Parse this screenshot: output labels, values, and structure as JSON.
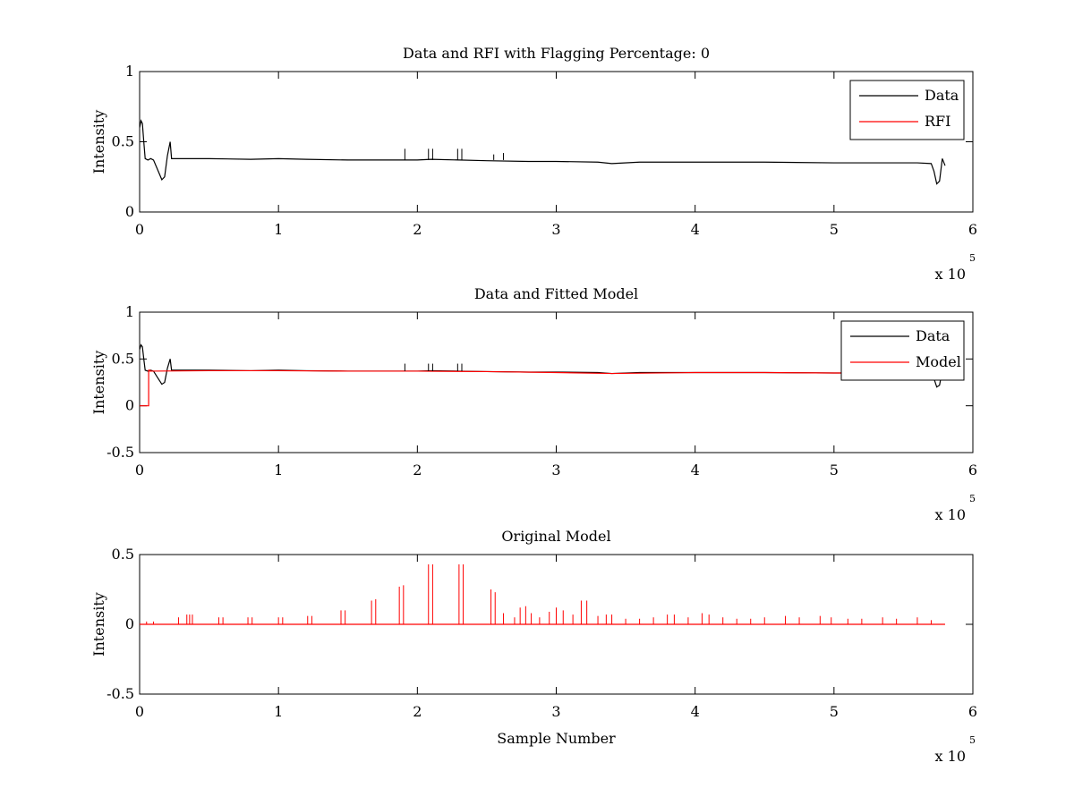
{
  "chart_data": [
    {
      "type": "line",
      "title": "Data and RFI with Flagging Percentage: 0",
      "xlabel": "",
      "ylabel": "Intensity",
      "xlim": [
        0,
        600000
      ],
      "ylim": [
        0,
        1
      ],
      "x_ticks": [
        "0",
        "1",
        "2",
        "3",
        "4",
        "5",
        "6"
      ],
      "y_ticks": [
        "0",
        "0.5",
        "1"
      ],
      "x_multiplier": {
        "base": "x 10",
        "exponent": "5"
      },
      "grid": false,
      "legend": {
        "placement": "top-right",
        "entries": [
          "Data",
          "RFI"
        ]
      },
      "series": [
        {
          "name": "Data",
          "color": "#000000",
          "x": [
            0,
            1000,
            2000,
            3000,
            4000,
            6000,
            8000,
            10000,
            13000,
            16000,
            18000,
            20000,
            22000,
            23000,
            25000,
            50000,
            80000,
            100000,
            120000,
            150000,
            180000,
            200000,
            210000,
            230000,
            250000,
            280000,
            300000,
            330000,
            340000,
            360000,
            400000,
            450000,
            500000,
            530000,
            560000,
            570000,
            572000,
            574000,
            576000,
            578000,
            580000
          ],
          "y": [
            0.6,
            0.65,
            0.63,
            0.5,
            0.38,
            0.37,
            0.38,
            0.37,
            0.3,
            0.23,
            0.25,
            0.4,
            0.5,
            0.38,
            0.38,
            0.38,
            0.375,
            0.38,
            0.375,
            0.37,
            0.37,
            0.37,
            0.375,
            0.37,
            0.365,
            0.36,
            0.36,
            0.355,
            0.345,
            0.355,
            0.355,
            0.355,
            0.35,
            0.35,
            0.35,
            0.345,
            0.29,
            0.2,
            0.22,
            0.38,
            0.33
          ]
        },
        {
          "name": "RFI",
          "color": "#ff0000",
          "x": [],
          "y": []
        }
      ],
      "spikes": [
        {
          "x": 191000,
          "y": 0.45
        },
        {
          "x": 208000,
          "y": 0.45
        },
        {
          "x": 211000,
          "y": 0.45
        },
        {
          "x": 229000,
          "y": 0.45
        },
        {
          "x": 232000,
          "y": 0.45
        },
        {
          "x": 262000,
          "y": 0.42
        },
        {
          "x": 255000,
          "y": 0.41
        }
      ]
    },
    {
      "type": "line",
      "title": "Data and Fitted Model",
      "xlabel": "",
      "ylabel": "Intensity",
      "xlim": [
        0,
        600000
      ],
      "ylim": [
        -0.5,
        1
      ],
      "x_ticks": [
        "0",
        "1",
        "2",
        "3",
        "4",
        "5",
        "6"
      ],
      "y_ticks": [
        "-0.5",
        "0",
        "0.5",
        "1"
      ],
      "x_multiplier": {
        "base": "x 10",
        "exponent": "5"
      },
      "grid": false,
      "legend": {
        "placement": "top-right",
        "entries": [
          "Data",
          "Model"
        ]
      },
      "series": [
        {
          "name": "Data",
          "color": "#000000",
          "x": [
            0,
            1000,
            2000,
            3000,
            4000,
            6000,
            8000,
            10000,
            13000,
            16000,
            18000,
            20000,
            22000,
            23000,
            25000,
            50000,
            80000,
            100000,
            120000,
            150000,
            180000,
            200000,
            210000,
            230000,
            250000,
            280000,
            300000,
            330000,
            340000,
            360000,
            400000,
            450000,
            500000,
            530000,
            560000,
            570000,
            572000,
            574000,
            576000,
            578000,
            580000
          ],
          "y": [
            0.6,
            0.65,
            0.63,
            0.5,
            0.38,
            0.37,
            0.38,
            0.37,
            0.3,
            0.23,
            0.25,
            0.4,
            0.5,
            0.38,
            0.38,
            0.38,
            0.375,
            0.38,
            0.375,
            0.37,
            0.37,
            0.37,
            0.375,
            0.37,
            0.365,
            0.36,
            0.36,
            0.355,
            0.345,
            0.355,
            0.355,
            0.355,
            0.35,
            0.35,
            0.35,
            0.345,
            0.29,
            0.2,
            0.22,
            0.38,
            0.33
          ]
        },
        {
          "name": "Model",
          "color": "#ff0000",
          "x": [
            0,
            6500,
            6500,
            7500,
            7500,
            50000,
            100000,
            150000,
            200000,
            250000,
            300000,
            340000,
            400000,
            450000,
            500000,
            540000
          ],
          "y": [
            0,
            0,
            0.38,
            0.38,
            0.37,
            0.375,
            0.375,
            0.37,
            0.37,
            0.365,
            0.355,
            0.345,
            0.355,
            0.355,
            0.35,
            0.35
          ]
        }
      ],
      "spikes": [
        {
          "x": 191000,
          "y": 0.45
        },
        {
          "x": 208000,
          "y": 0.45
        },
        {
          "x": 211000,
          "y": 0.45
        },
        {
          "x": 229000,
          "y": 0.45
        },
        {
          "x": 232000,
          "y": 0.45
        }
      ]
    },
    {
      "type": "line",
      "title": "Original Model",
      "xlabel": "Sample Number",
      "ylabel": "Intensity",
      "xlim": [
        0,
        600000
      ],
      "ylim": [
        -0.5,
        0.5
      ],
      "x_ticks": [
        "0",
        "1",
        "2",
        "3",
        "4",
        "5",
        "6"
      ],
      "y_ticks": [
        "-0.5",
        "0",
        "0.5"
      ],
      "x_multiplier": {
        "base": "x 10",
        "exponent": "5"
      },
      "grid": false,
      "series": [
        {
          "name": "",
          "color": "#ff0000",
          "x": [
            0,
            580000
          ],
          "y": [
            0,
            0
          ]
        }
      ],
      "spikes": [
        {
          "x": 5000,
          "y": 0.02
        },
        {
          "x": 10000,
          "y": 0.02
        },
        {
          "x": 28000,
          "y": 0.05
        },
        {
          "x": 34000,
          "y": 0.07
        },
        {
          "x": 36000,
          "y": 0.07
        },
        {
          "x": 38000,
          "y": 0.07
        },
        {
          "x": 57000,
          "y": 0.05
        },
        {
          "x": 60000,
          "y": 0.05
        },
        {
          "x": 78000,
          "y": 0.05
        },
        {
          "x": 81000,
          "y": 0.05
        },
        {
          "x": 100000,
          "y": 0.05
        },
        {
          "x": 103000,
          "y": 0.05
        },
        {
          "x": 121000,
          "y": 0.06
        },
        {
          "x": 124000,
          "y": 0.06
        },
        {
          "x": 145000,
          "y": 0.1
        },
        {
          "x": 148000,
          "y": 0.1
        },
        {
          "x": 167000,
          "y": 0.17
        },
        {
          "x": 170000,
          "y": 0.18
        },
        {
          "x": 187000,
          "y": 0.27
        },
        {
          "x": 190000,
          "y": 0.28
        },
        {
          "x": 208000,
          "y": 0.43
        },
        {
          "x": 211000,
          "y": 0.43
        },
        {
          "x": 230000,
          "y": 0.43
        },
        {
          "x": 233000,
          "y": 0.43
        },
        {
          "x": 253000,
          "y": 0.25
        },
        {
          "x": 256000,
          "y": 0.23
        },
        {
          "x": 262000,
          "y": 0.08
        },
        {
          "x": 270000,
          "y": 0.05
        },
        {
          "x": 274000,
          "y": 0.12
        },
        {
          "x": 278000,
          "y": 0.13
        },
        {
          "x": 282000,
          "y": 0.08
        },
        {
          "x": 288000,
          "y": 0.05
        },
        {
          "x": 295000,
          "y": 0.09
        },
        {
          "x": 300000,
          "y": 0.12
        },
        {
          "x": 305000,
          "y": 0.1
        },
        {
          "x": 312000,
          "y": 0.07
        },
        {
          "x": 318000,
          "y": 0.17
        },
        {
          "x": 322000,
          "y": 0.17
        },
        {
          "x": 330000,
          "y": 0.06
        },
        {
          "x": 336000,
          "y": 0.07
        },
        {
          "x": 340000,
          "y": 0.07
        },
        {
          "x": 350000,
          "y": 0.04
        },
        {
          "x": 360000,
          "y": 0.04
        },
        {
          "x": 370000,
          "y": 0.05
        },
        {
          "x": 380000,
          "y": 0.07
        },
        {
          "x": 385000,
          "y": 0.07
        },
        {
          "x": 395000,
          "y": 0.05
        },
        {
          "x": 405000,
          "y": 0.08
        },
        {
          "x": 410000,
          "y": 0.07
        },
        {
          "x": 420000,
          "y": 0.05
        },
        {
          "x": 430000,
          "y": 0.04
        },
        {
          "x": 440000,
          "y": 0.04
        },
        {
          "x": 450000,
          "y": 0.05
        },
        {
          "x": 465000,
          "y": 0.06
        },
        {
          "x": 475000,
          "y": 0.05
        },
        {
          "x": 490000,
          "y": 0.06
        },
        {
          "x": 498000,
          "y": 0.05
        },
        {
          "x": 510000,
          "y": 0.04
        },
        {
          "x": 520000,
          "y": 0.04
        },
        {
          "x": 535000,
          "y": 0.05
        },
        {
          "x": 545000,
          "y": 0.04
        },
        {
          "x": 560000,
          "y": 0.05
        },
        {
          "x": 570000,
          "y": 0.03
        }
      ]
    }
  ]
}
